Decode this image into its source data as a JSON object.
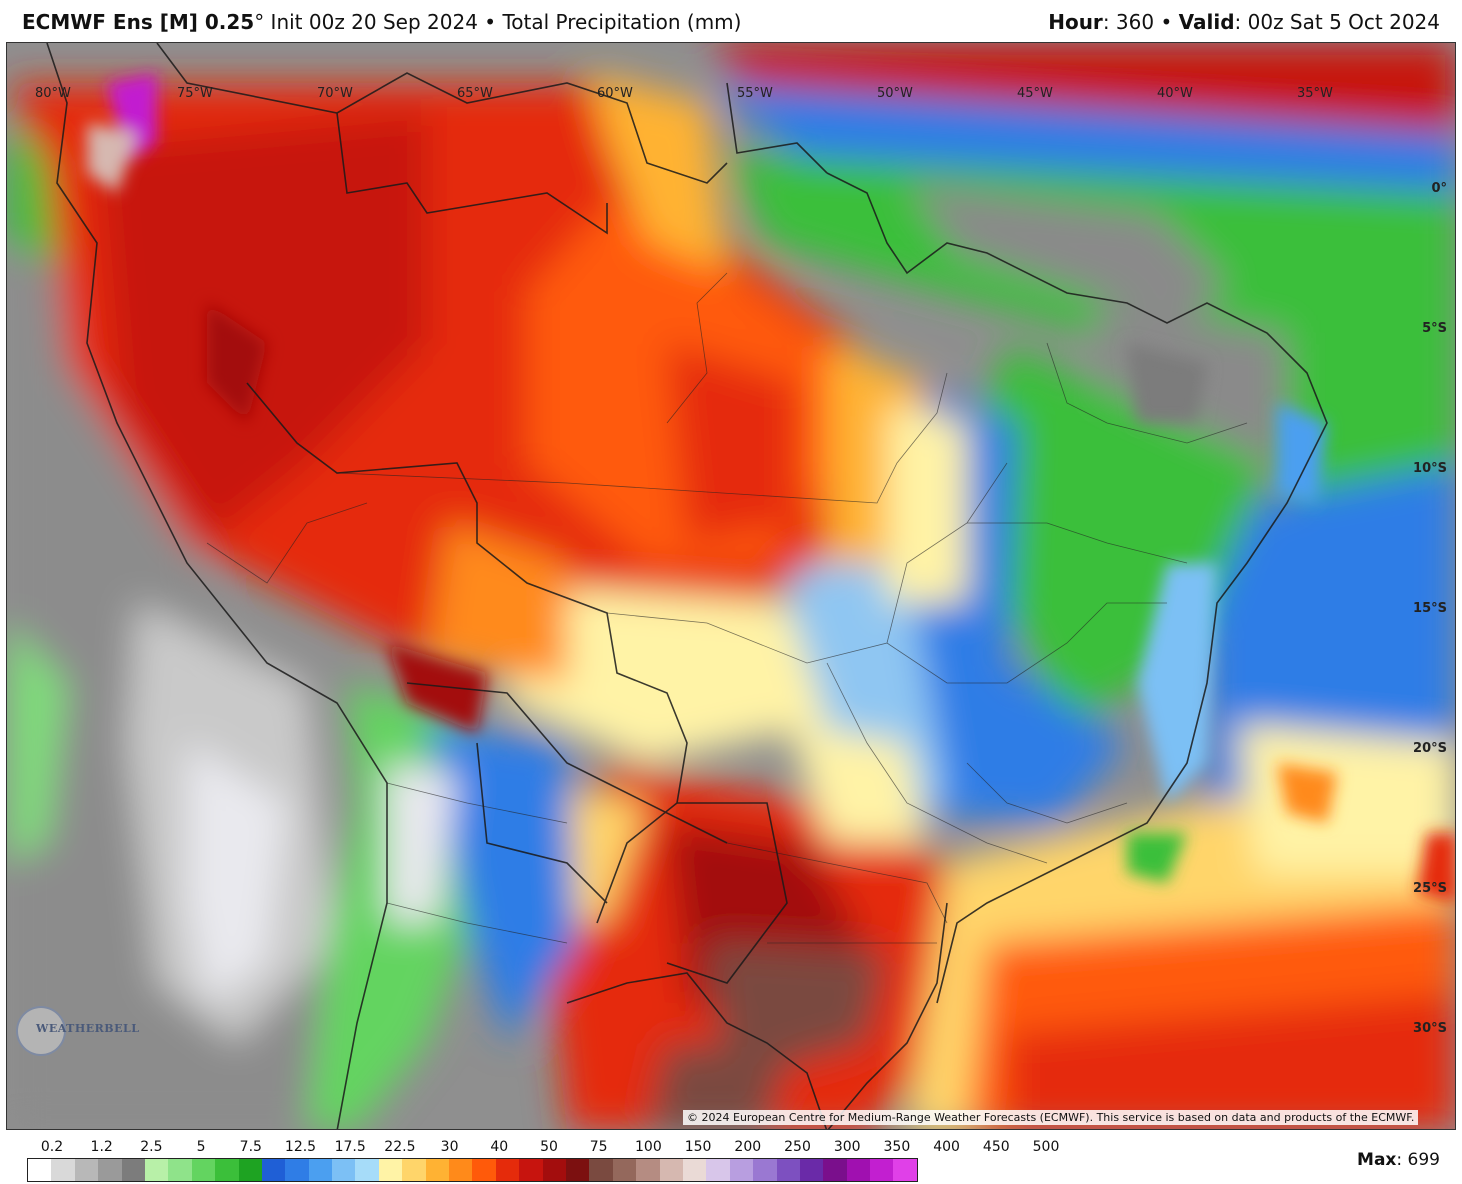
{
  "header": {
    "model": "ECMWF Ens [M] 0.25",
    "degree": "°",
    "init": " Init 00z 20 Sep 2024",
    "sep": " • ",
    "product": "Total Precipitation (mm)",
    "hour_label": "Hour",
    "hour_value": ": 360",
    "valid_label": "Valid",
    "valid_value": ": 00z Sat 5 Oct 2024"
  },
  "lon_labels": [
    "80°W",
    "75°W",
    "70°W",
    "65°W",
    "60°W",
    "55°W",
    "50°W",
    "45°W",
    "40°W",
    "35°W"
  ],
  "lat_labels": [
    "0°",
    "5°S",
    "10°S",
    "15°S",
    "20°S",
    "25°S",
    "30°S"
  ],
  "copyright": "© 2024 European Centre for Medium-Range Weather Forecasts (ECMWF). This service is based on data and products of the ECMWF.",
  "logo": {
    "text": "WEATHERBELL"
  },
  "legend": {
    "ticks": [
      "0.2",
      "1.2",
      "2.5",
      "5",
      "7.5",
      "12.5",
      "17.5",
      "22.5",
      "30",
      "40",
      "50",
      "75",
      "100",
      "150",
      "200",
      "250",
      "300",
      "350",
      "400",
      "450",
      "500"
    ],
    "colors": [
      "#ffffff",
      "#d9d9d9",
      "#b8b8b8",
      "#9a9a9a",
      "#7c7c7c",
      "#b8f0a8",
      "#8fe38a",
      "#63d460",
      "#3bbf3a",
      "#1ea322",
      "#1f5fd6",
      "#2f7de6",
      "#4b9ff0",
      "#7cc0f5",
      "#a6dcf9",
      "#fff3a6",
      "#ffd56a",
      "#ffb233",
      "#ff8a1a",
      "#ff5a0a",
      "#e52b0b",
      "#c7140e",
      "#a30d0d",
      "#7c1010",
      "#7a4a40",
      "#94685c",
      "#b58c82",
      "#d6b8b0",
      "#eadad6",
      "#d8c6ea",
      "#b89ee0",
      "#9a78d2",
      "#7d50c0",
      "#6a2aa8",
      "#7a0f8c",
      "#a010b0",
      "#c21fd0",
      "#e040e8"
    ]
  },
  "max": {
    "label": "Max",
    "value": ": 699"
  }
}
